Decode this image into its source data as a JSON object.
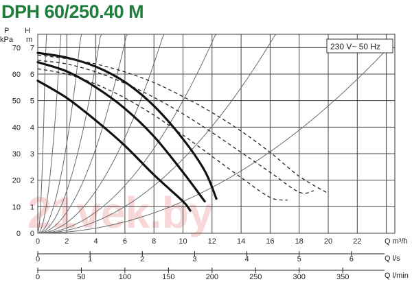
{
  "title": "DPH 60/250.40 M",
  "chart_data": {
    "type": "line",
    "title": "DPH 60/250.40 M",
    "annotation": "230 V~ 50 Hz",
    "watermark": "21vek.by",
    "grid": true,
    "y_left_unit": [
      "P",
      "kPa"
    ],
    "y_right_unit": [
      "H",
      "m"
    ],
    "x_axes": [
      {
        "unit": "Q m³/h",
        "ticks": [
          "0",
          "2",
          "4",
          "6",
          "8",
          "10",
          "12",
          "14",
          "16",
          "18",
          "20",
          "22"
        ],
        "xlim": [
          0,
          22
        ]
      },
      {
        "unit": "Q l/s",
        "ticks": [
          "0",
          "1",
          "2",
          "3",
          "4",
          "5",
          "6"
        ]
      },
      {
        "unit": "Q l/min",
        "ticks": [
          "0",
          "50",
          "100",
          "150",
          "200",
          "250",
          "300",
          "350"
        ]
      }
    ],
    "y_ticks_kpa": [
      "0",
      "10",
      "20",
      "30",
      "40",
      "50",
      "60",
      "70"
    ],
    "y_ticks_m": [
      "0",
      "1",
      "2",
      "3",
      "4",
      "5",
      "6",
      "7"
    ],
    "ylim_m": [
      0,
      7.5
    ],
    "series": [
      {
        "style": "solid",
        "x": [
          0,
          2,
          4,
          6,
          8,
          10,
          11.5,
          12.3
        ],
        "y": [
          6.8,
          6.62,
          6.28,
          5.7,
          4.8,
          3.55,
          2.35,
          1.3
        ]
      },
      {
        "style": "solid",
        "x": [
          0,
          2,
          4,
          6,
          8,
          10,
          11.5
        ],
        "y": [
          6.45,
          6.1,
          5.5,
          4.7,
          3.65,
          2.3,
          1.2
        ]
      },
      {
        "style": "solid",
        "x": [
          0,
          2,
          4,
          6,
          8,
          10,
          10.5
        ],
        "y": [
          5.75,
          5.1,
          4.25,
          3.3,
          2.2,
          1.2,
          0.85
        ]
      },
      {
        "style": "dashed",
        "x": [
          0,
          2,
          4,
          6,
          8,
          10,
          12,
          14,
          16,
          18,
          20
        ],
        "y": [
          6.72,
          6.58,
          6.38,
          6.08,
          5.68,
          5.15,
          4.55,
          3.85,
          3.05,
          2.15,
          1.5
        ]
      },
      {
        "style": "dashed",
        "x": [
          0,
          2,
          4,
          6,
          8,
          10,
          12,
          14,
          16,
          18,
          19
        ],
        "y": [
          6.52,
          6.38,
          6.08,
          5.65,
          5.12,
          4.5,
          3.8,
          3.05,
          2.3,
          1.55,
          1.6
        ]
      },
      {
        "style": "dashed",
        "x": [
          0,
          2,
          4,
          6,
          8,
          10,
          12,
          14,
          16,
          17.2
        ],
        "y": [
          6.2,
          6.0,
          5.62,
          5.1,
          4.45,
          3.7,
          2.9,
          2.1,
          1.35,
          1.25
        ]
      }
    ],
    "system_curve_coefficients_m_per_m3h2": [
      25.0,
      3.0,
      0.85,
      0.4,
      0.2,
      0.1,
      0.05,
      0.028,
      0.012
    ]
  }
}
